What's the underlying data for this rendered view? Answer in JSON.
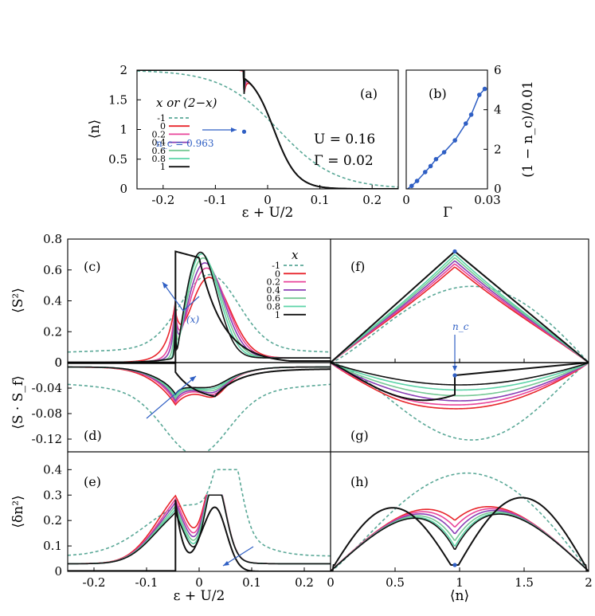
{
  "chart_data": [
    {
      "id": "a",
      "type": "line",
      "tag": "(a)",
      "xlabel": "ε + U/2",
      "ylabel": "⟨n⟩",
      "xlim": [
        -0.25,
        0.25
      ],
      "ylim": [
        0,
        2
      ],
      "xticks": [
        "-0.2",
        "-0.1",
        "0",
        "0.1",
        "0.2"
      ],
      "yticks": [
        "0",
        "0.5",
        "1",
        "1.5",
        "2"
      ],
      "legend_title": "x or (2−x)",
      "params": [
        "U = 0.16",
        "Γ = 0.02"
      ],
      "annotation": "n_c = 0.963",
      "critical_point": {
        "x": -0.045,
        "y": 0.963
      },
      "series": [
        {
          "name": "-1",
          "color": "#5aa897",
          "dashed": true
        },
        {
          "name": "0",
          "color": "#e8252b"
        },
        {
          "name": "0.2",
          "color": "#e8449a"
        },
        {
          "name": "0.4",
          "color": "#8a3fb5"
        },
        {
          "name": "0.6",
          "color": "#77c995"
        },
        {
          "name": "0.8",
          "color": "#5cd4a8"
        },
        {
          "name": "1",
          "color": "#111111"
        }
      ]
    },
    {
      "id": "b",
      "type": "line",
      "tag": "(b)",
      "xlabel": "Γ",
      "ylabel": "(1 − n_c)/0.01",
      "xlim": [
        0,
        0.03
      ],
      "ylim": [
        0,
        6
      ],
      "xticks": [
        "0",
        "0.03"
      ],
      "yticks": [
        "0",
        "2",
        "4",
        "6"
      ],
      "x": [
        0.002,
        0.004,
        0.007,
        0.009,
        0.011,
        0.014,
        0.018,
        0.022,
        0.024,
        0.027,
        0.029
      ],
      "values": [
        0.15,
        0.4,
        0.85,
        1.15,
        1.5,
        1.85,
        2.45,
        3.3,
        3.75,
        4.75,
        5.05
      ]
    },
    {
      "id": "c",
      "type": "line",
      "tag": "(c)",
      "ylabel": "⟨S²⟩",
      "xlim": [
        -0.25,
        0.25
      ],
      "ylim": [
        0,
        0.8
      ],
      "yticks": [
        "0",
        "0.2",
        "0.4",
        "0.6",
        "0.8"
      ],
      "legend_title": "x",
      "legend": [
        "-1",
        "0",
        "0.2",
        "0.4",
        "0.6",
        "0.8",
        "1"
      ],
      "arrow_label": "(x)"
    },
    {
      "id": "d",
      "type": "line",
      "tag": "(d)",
      "ylabel": "⟨S · S_f⟩",
      "xlim": [
        -0.25,
        0.25
      ],
      "ylim": [
        -0.14,
        0
      ],
      "yticks": [
        "0",
        "-0.04",
        "-0.08",
        "-0.12"
      ]
    },
    {
      "id": "e",
      "type": "line",
      "tag": "(e)",
      "xlabel": "ε + U/2",
      "ylabel": "⟨δn²⟩",
      "xlim": [
        -0.25,
        0.25
      ],
      "ylim": [
        0,
        0.47
      ],
      "xticks": [
        "-0.2",
        "-0.1",
        "0",
        "0.1",
        "0.2"
      ],
      "yticks": [
        "0",
        "0.1",
        "0.2",
        "0.3",
        "0.4"
      ]
    },
    {
      "id": "f",
      "type": "line",
      "tag": "(f)",
      "xlim": [
        0,
        2
      ],
      "annotation": "n_c"
    },
    {
      "id": "g",
      "type": "line",
      "tag": "(g)",
      "xlim": [
        0,
        2
      ]
    },
    {
      "id": "h",
      "type": "line",
      "tag": "(h)",
      "xlabel": "⟨n⟩",
      "xlim": [
        0,
        2
      ],
      "ylim": [
        0,
        0.47
      ],
      "xticks": [
        "0",
        "0.5",
        "1",
        "1.5",
        "2"
      ]
    }
  ]
}
